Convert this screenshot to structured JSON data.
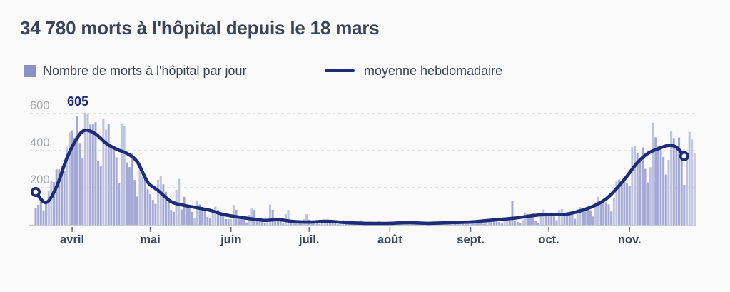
{
  "title": "34 780 morts à l'hôpital depuis le 18 mars",
  "legend": {
    "daily": {
      "label": "Nombre de morts à l'hôpital par jour"
    },
    "weekly": {
      "label": "moyenne hebdomadaire"
    }
  },
  "chart_data": {
    "type": "bar+line",
    "title": "34 780 morts à l'hôpital depuis le 18 mars",
    "start_date": "2020-03-18",
    "end_date": "2020-11-26",
    "grid": true,
    "y_ticks": [
      200,
      400,
      600
    ],
    "y_axis_max": 650,
    "months": [
      {
        "label": "avril",
        "date": "2020-04-01"
      },
      {
        "label": "mai",
        "date": "2020-05-01"
      },
      {
        "label": "juin",
        "date": "2020-06-01"
      },
      {
        "label": "juil.",
        "date": "2020-07-01"
      },
      {
        "label": "août",
        "date": "2020-08-01"
      },
      {
        "label": "sept.",
        "date": "2020-09-01"
      },
      {
        "label": "oct.",
        "date": "2020-10-01"
      },
      {
        "label": "nov.",
        "date": "2020-11-01"
      }
    ],
    "annotation": {
      "label": "605",
      "date": "2020-04-06",
      "value": 605
    },
    "bar_series": {
      "name": "Nombre de morts à l'hôpital par jour",
      "provisional_last": 2,
      "values": [
        89,
        108,
        128,
        78,
        112,
        186,
        240,
        231,
        299,
        299,
        319,
        292,
        418,
        499,
        509,
        471,
        588,
        441,
        357,
        605,
        597,
        541,
        542,
        554,
        345,
        315,
        574,
        514,
        544,
        417,
        405,
        364,
        227,
        547,
        531,
        336,
        311,
        389,
        242,
        152,
        313,
        261,
        243,
        193,
        166,
        135,
        113,
        243,
        263,
        218,
        178,
        130,
        80,
        70,
        189,
        248,
        83,
        151,
        104,
        96,
        70,
        35,
        131,
        110,
        83,
        74,
        43,
        35,
        73,
        98,
        81,
        66,
        57,
        31,
        31,
        31,
        107,
        81,
        46,
        44,
        31,
        13,
        54,
        87,
        81,
        29,
        28,
        24,
        9,
        29,
        109,
        81,
        28,
        26,
        22,
        7,
        57,
        81,
        27,
        26,
        21,
        22,
        7,
        30,
        57,
        28,
        18,
        17,
        16,
        5,
        21,
        29,
        23,
        15,
        13,
        12,
        3,
        19,
        26,
        19,
        14,
        13,
        12,
        3,
        18,
        25,
        17,
        13,
        12,
        10,
        3,
        17,
        23,
        16,
        12,
        11,
        9,
        3,
        14,
        21,
        14,
        11,
        10,
        9,
        2,
        13,
        19,
        13,
        10,
        9,
        8,
        2,
        12,
        18,
        12,
        15,
        13,
        11,
        4,
        16,
        22,
        17,
        15,
        14,
        12,
        5,
        18,
        25,
        19,
        17,
        16,
        14,
        6,
        20,
        27,
        21,
        19,
        17,
        15,
        7,
        22,
        30,
        24,
        131,
        19,
        17,
        8,
        26,
        66,
        58,
        55,
        63,
        20,
        10,
        62,
        82,
        66,
        52,
        66,
        46,
        25,
        80,
        85,
        66,
        58,
        63,
        54,
        32,
        85,
        95,
        82,
        88,
        92,
        78,
        45,
        102,
        151,
        125,
        136,
        122,
        110,
        72,
        146,
        235,
        244,
        232,
        250,
        224,
        208,
        418,
        428,
        385,
        362,
        418,
        302,
        228,
        310,
        551,
        472,
        425,
        425,
        366,
        271,
        350,
        506,
        468,
        425,
        471,
        352,
        215,
        354,
        501,
        460,
        385
      ]
    },
    "line_series": {
      "name": "moyenne hebdomadaire",
      "end_markers": true,
      "points": [
        [
          "2020-03-18",
          177
        ],
        [
          "2020-03-22",
          120
        ],
        [
          "2020-03-26",
          205
        ],
        [
          "2020-03-30",
          360
        ],
        [
          "2020-04-03",
          470
        ],
        [
          "2020-04-06",
          510
        ],
        [
          "2020-04-10",
          490
        ],
        [
          "2020-04-14",
          440
        ],
        [
          "2020-04-18",
          408
        ],
        [
          "2020-04-22",
          385
        ],
        [
          "2020-04-26",
          340
        ],
        [
          "2020-04-30",
          230
        ],
        [
          "2020-05-04",
          185
        ],
        [
          "2020-05-09",
          125
        ],
        [
          "2020-05-14",
          105
        ],
        [
          "2020-05-19",
          92
        ],
        [
          "2020-05-24",
          78
        ],
        [
          "2020-05-29",
          56
        ],
        [
          "2020-06-03",
          44
        ],
        [
          "2020-06-08",
          34
        ],
        [
          "2020-06-14",
          24
        ],
        [
          "2020-06-19",
          28
        ],
        [
          "2020-06-25",
          18
        ],
        [
          "2020-07-01",
          15
        ],
        [
          "2020-07-08",
          19
        ],
        [
          "2020-07-16",
          11
        ],
        [
          "2020-07-24",
          8
        ],
        [
          "2020-08-01",
          8
        ],
        [
          "2020-08-08",
          12
        ],
        [
          "2020-08-16",
          8
        ],
        [
          "2020-08-24",
          12
        ],
        [
          "2020-09-01",
          15
        ],
        [
          "2020-09-08",
          24
        ],
        [
          "2020-09-14",
          31
        ],
        [
          "2020-09-19",
          38
        ],
        [
          "2020-09-24",
          48
        ],
        [
          "2020-09-28",
          54
        ],
        [
          "2020-10-03",
          56
        ],
        [
          "2020-10-08",
          58
        ],
        [
          "2020-10-13",
          75
        ],
        [
          "2020-10-18",
          100
        ],
        [
          "2020-10-23",
          140
        ],
        [
          "2020-10-27",
          195
        ],
        [
          "2020-10-31",
          262
        ],
        [
          "2020-11-04",
          335
        ],
        [
          "2020-11-08",
          385
        ],
        [
          "2020-11-12",
          410
        ],
        [
          "2020-11-16",
          428
        ],
        [
          "2020-11-19",
          418
        ],
        [
          "2020-11-22",
          370
        ]
      ]
    },
    "colors": {
      "bar": "#a3a9d4",
      "bar_light": "#bdc2e0",
      "bar_provisional": "#c6c9e4",
      "line": "#1e2b78",
      "marker_fill": "#ffffff",
      "grid": "#cbcbcb",
      "axis": "#c9cad0",
      "tick": "#6a7180",
      "annotation": "#1e2b78"
    }
  }
}
